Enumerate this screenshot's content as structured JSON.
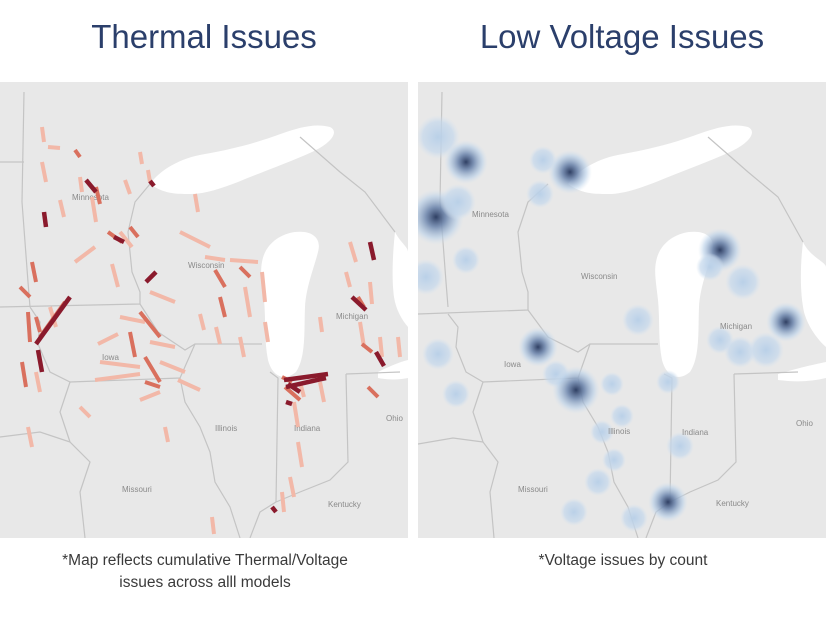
{
  "panels": [
    {
      "title": "Thermal Issues",
      "note_line1": "*Map reflects cumulative Thermal/Voltage",
      "note_line2": "issues across alll models",
      "labels": [
        "Minnesota",
        "Wisconsin",
        "Michigan",
        "Iowa",
        "Illinois",
        "Indiana",
        "Ohio",
        "Missouri",
        "Kentucky"
      ]
    },
    {
      "title": "Low Voltage Issues",
      "note_line1": "*Voltage issues by count",
      "labels": [
        "Minnesota",
        "Wisconsin",
        "Michigan",
        "Iowa",
        "Illinois",
        "Indiana",
        "Ohio",
        "Missouri",
        "Kentucky"
      ]
    }
  ],
  "colors": {
    "land": "#e8e8e8",
    "water": "#ffffff",
    "border": "#c4c4c4",
    "title": "#2b3f6b",
    "thermal_light": "#f2b8a8",
    "thermal_mid": "#d9705e",
    "thermal_dark": "#8a1a2c",
    "voltage_light": "#bdd3ea",
    "voltage_dark": "#2f3f63"
  }
}
